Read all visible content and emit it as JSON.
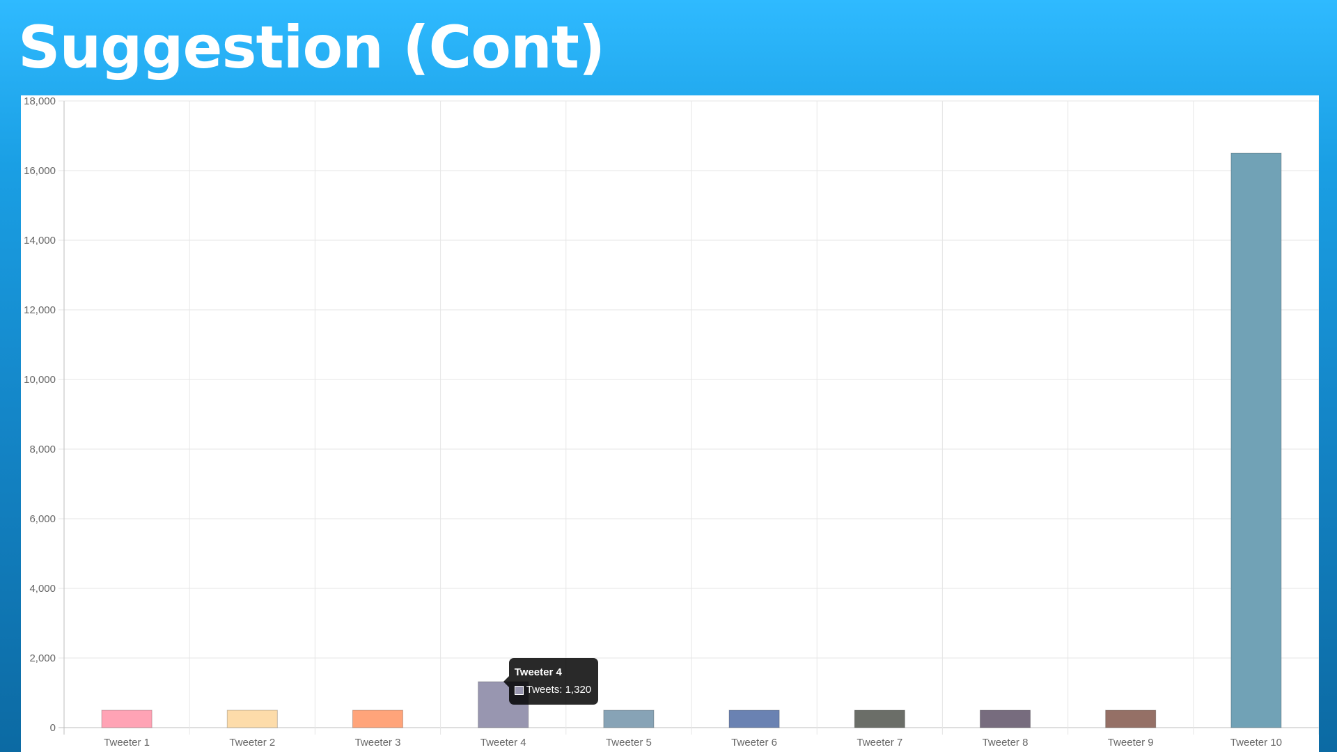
{
  "slide": {
    "title": "Suggestion (Cont)"
  },
  "chart_data": {
    "type": "bar",
    "categories": [
      "Tweeter 1",
      "Tweeter 2",
      "Tweeter 3",
      "Tweeter 4",
      "Tweeter 5",
      "Tweeter 6",
      "Tweeter 7",
      "Tweeter 8",
      "Tweeter 9",
      "Tweeter 10"
    ],
    "series": [
      {
        "name": "Tweets",
        "values": [
          500,
          500,
          500,
          1320,
          500,
          500,
          500,
          500,
          500,
          16500
        ]
      }
    ],
    "bar_colors": [
      "#ffa3b5",
      "#fddcaa",
      "#ffa47a",
      "#9896b0",
      "#87a3b6",
      "#6a82b2",
      "#6b6e68",
      "#776c7e",
      "#957066",
      "#71a2b6"
    ],
    "yticks": [
      "0",
      "2,000",
      "4,000",
      "6,000",
      "8,000",
      "10,000",
      "12,000",
      "14,000",
      "16,000",
      "18,000"
    ],
    "ylim": [
      0,
      18000
    ],
    "grid": true,
    "legend": "none",
    "tooltip": {
      "category_index": 3,
      "title": "Tweeter 4",
      "label": "Tweets: 1,320",
      "swatch_color": "#9896b0"
    }
  }
}
